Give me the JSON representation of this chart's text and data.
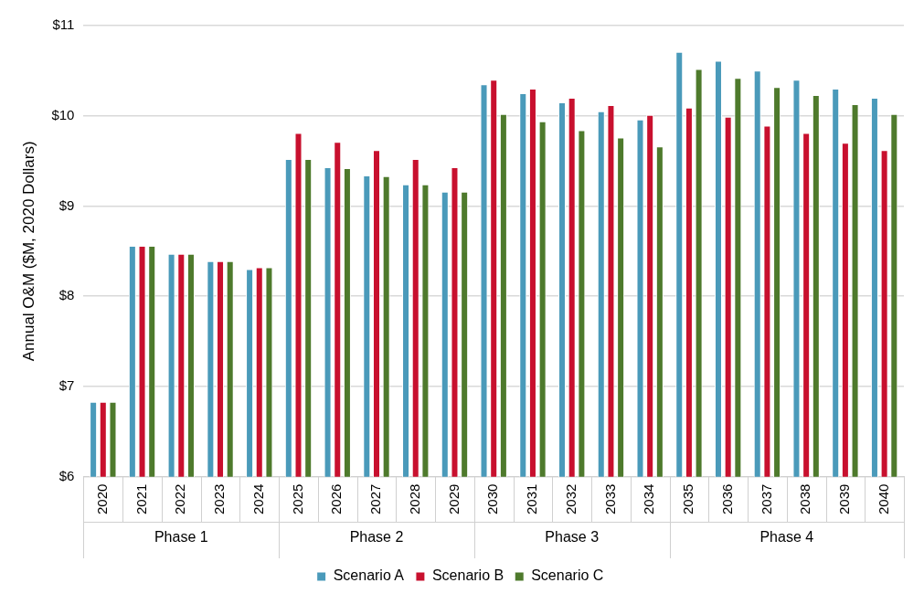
{
  "chart_data": {
    "type": "bar",
    "ylabel": "Annual O&M ($M, 2020 Dollars)",
    "categories": [
      "2020",
      "2021",
      "2022",
      "2023",
      "2024",
      "2025",
      "2026",
      "2027",
      "2028",
      "2029",
      "2030",
      "2031",
      "2032",
      "2033",
      "2034",
      "2035",
      "2036",
      "2037",
      "2038",
      "2039",
      "2040"
    ],
    "series": [
      {
        "name": "Scenario A",
        "color": "#4a9aba",
        "values": [
          6.83,
          8.56,
          8.47,
          8.39,
          8.3,
          9.52,
          9.43,
          9.34,
          9.24,
          9.16,
          10.35,
          10.25,
          10.15,
          10.05,
          9.96,
          10.71,
          10.61,
          10.5,
          10.4,
          10.3,
          10.2
        ]
      },
      {
        "name": "Scenario B",
        "color": "#c8102e",
        "values": [
          6.83,
          8.56,
          8.47,
          8.39,
          8.32,
          9.81,
          9.71,
          9.62,
          9.52,
          9.43,
          10.4,
          10.3,
          10.2,
          10.12,
          10.01,
          10.09,
          9.99,
          9.89,
          9.81,
          9.7,
          9.62
        ]
      },
      {
        "name": "Scenario C",
        "color": "#4e7a2c",
        "values": [
          6.83,
          8.56,
          8.47,
          8.39,
          8.32,
          9.52,
          9.42,
          9.33,
          9.24,
          9.16,
          10.02,
          9.94,
          9.84,
          9.76,
          9.66,
          10.52,
          10.42,
          10.32,
          10.23,
          10.13,
          10.02
        ]
      }
    ],
    "ylim": [
      6,
      11
    ],
    "yticks": [
      {
        "value": 6,
        "label": "$6"
      },
      {
        "value": 7,
        "label": "$7"
      },
      {
        "value": 8,
        "label": "$8"
      },
      {
        "value": 9,
        "label": "$9"
      },
      {
        "value": 10,
        "label": "$10"
      },
      {
        "value": 11,
        "label": "$11"
      }
    ],
    "grid": "y",
    "legend": "bottom",
    "annotations": [
      "Phase 1",
      "Phase 2",
      "Phase 3",
      "Phase 4"
    ]
  }
}
